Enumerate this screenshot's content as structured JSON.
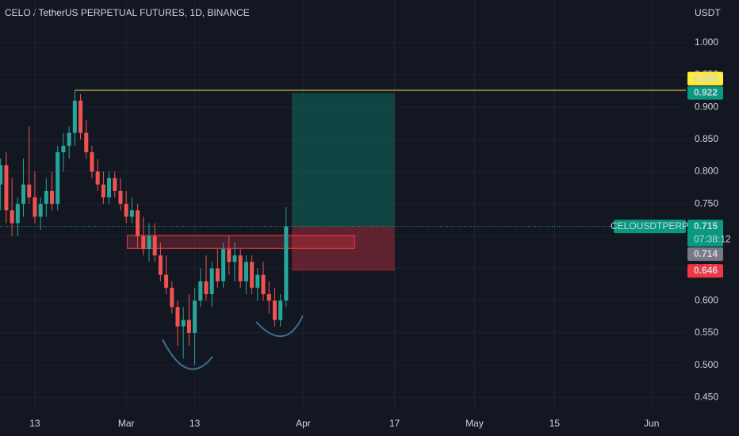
{
  "chart_data": {
    "type": "candlestick",
    "title": "CELO / TetherUS PERPETUAL FUTURES, 1D, BINANCE",
    "y_unit": "USDT",
    "x": [
      -6,
      -5,
      -4,
      -3,
      -2,
      -1,
      0,
      1,
      2,
      3,
      4,
      5,
      6,
      7,
      8,
      9,
      10,
      11,
      12,
      13,
      14,
      15,
      16,
      17,
      18,
      19,
      20,
      21,
      22,
      23,
      24,
      25,
      26,
      27,
      28,
      29,
      30,
      31,
      32,
      33,
      34,
      35,
      36,
      37,
      38,
      39,
      40,
      41,
      42,
      43,
      44
    ],
    "open": [
      0.78,
      0.81,
      0.74,
      0.72,
      0.75,
      0.78,
      0.76,
      0.73,
      0.75,
      0.77,
      0.75,
      0.83,
      0.84,
      0.86,
      0.91,
      0.86,
      0.83,
      0.8,
      0.78,
      0.76,
      0.79,
      0.77,
      0.75,
      0.73,
      0.74,
      0.7,
      0.68,
      0.7,
      0.67,
      0.64,
      0.62,
      0.59,
      0.56,
      0.57,
      0.55,
      0.6,
      0.63,
      0.61,
      0.65,
      0.63,
      0.68,
      0.66,
      0.67,
      0.63,
      0.66,
      0.62,
      0.64,
      0.61,
      0.6,
      0.57,
      0.6
    ],
    "high": [
      0.82,
      0.83,
      0.79,
      0.76,
      0.82,
      0.87,
      0.8,
      0.76,
      0.79,
      0.8,
      0.84,
      0.86,
      0.87,
      0.926,
      0.92,
      0.88,
      0.84,
      0.82,
      0.8,
      0.8,
      0.8,
      0.79,
      0.77,
      0.76,
      0.75,
      0.73,
      0.72,
      0.72,
      0.69,
      0.67,
      0.63,
      0.6,
      0.59,
      0.61,
      0.62,
      0.65,
      0.67,
      0.66,
      0.68,
      0.69,
      0.7,
      0.69,
      0.68,
      0.67,
      0.67,
      0.65,
      0.66,
      0.63,
      0.62,
      0.61,
      0.745
    ],
    "low": [
      0.74,
      0.72,
      0.7,
      0.7,
      0.73,
      0.75,
      0.72,
      0.71,
      0.73,
      0.74,
      0.74,
      0.8,
      0.82,
      0.84,
      0.85,
      0.82,
      0.79,
      0.77,
      0.75,
      0.75,
      0.76,
      0.74,
      0.72,
      0.72,
      0.68,
      0.67,
      0.66,
      0.66,
      0.63,
      0.61,
      0.58,
      0.53,
      0.51,
      0.53,
      0.5,
      0.59,
      0.6,
      0.59,
      0.62,
      0.62,
      0.64,
      0.63,
      0.62,
      0.61,
      0.61,
      0.6,
      0.6,
      0.58,
      0.56,
      0.56,
      0.59
    ],
    "close": [
      0.81,
      0.74,
      0.72,
      0.75,
      0.78,
      0.76,
      0.73,
      0.75,
      0.77,
      0.75,
      0.83,
      0.84,
      0.86,
      0.91,
      0.86,
      0.83,
      0.8,
      0.78,
      0.76,
      0.79,
      0.77,
      0.75,
      0.73,
      0.74,
      0.7,
      0.68,
      0.7,
      0.67,
      0.64,
      0.62,
      0.59,
      0.56,
      0.57,
      0.55,
      0.6,
      0.63,
      0.61,
      0.65,
      0.63,
      0.68,
      0.66,
      0.67,
      0.63,
      0.66,
      0.62,
      0.64,
      0.61,
      0.6,
      0.57,
      0.6,
      0.715
    ],
    "up_color": "#26a69a",
    "down_color": "#ef5350",
    "xlim": [
      -6.1,
      114
    ],
    "xticks": [
      {
        "value": 0,
        "label": "13"
      },
      {
        "value": 16,
        "label": "Mar"
      },
      {
        "value": 28,
        "label": "13"
      },
      {
        "value": 47,
        "label": "Apr"
      },
      {
        "value": 63,
        "label": "17"
      },
      {
        "value": 77,
        "label": "May"
      },
      {
        "value": 91,
        "label": "15"
      },
      {
        "value": 108,
        "label": "Jun"
      }
    ],
    "ylim": [
      0.427,
      1.066
    ],
    "yticks": [
      {
        "value": 0.45,
        "label": "0.450"
      },
      {
        "value": 0.5,
        "label": "0.500"
      },
      {
        "value": 0.55,
        "label": "0.550"
      },
      {
        "value": 0.6,
        "label": "0.600"
      },
      {
        "value": 0.65,
        "label": "0.650"
      },
      {
        "value": 0.7,
        "label": "0.700"
      },
      {
        "value": 0.75,
        "label": "0.750"
      },
      {
        "value": 0.8,
        "label": "0.800"
      },
      {
        "value": 0.85,
        "label": "0.850"
      },
      {
        "value": 0.9,
        "label": "0.900"
      },
      {
        "value": 0.95,
        "label": "0.950"
      },
      {
        "value": 1.0,
        "label": "1.000"
      }
    ],
    "horizontal_line": {
      "value": 0.926,
      "start": 7,
      "color": "#ffeb3b"
    },
    "zone": {
      "top": 0.701,
      "bottom": 0.681,
      "start": 16.2,
      "end": 56
    },
    "position": {
      "entry": 0.715,
      "target": 0.922,
      "stop": 0.646,
      "start": 45,
      "end": 63
    },
    "symbol": "CELOUSDTPERP",
    "countdown": "07:38:12",
    "last_price": 0.715,
    "price_tags": [
      {
        "value": 0.922,
        "color": "#089981"
      },
      {
        "value": 0.926,
        "color": "#ffeb3b"
      },
      {
        "value": 0.715,
        "color": "#089981"
      },
      {
        "value": 0.714,
        "color": "#787b86"
      },
      {
        "value": 0.646,
        "color": "#f23645"
      }
    ]
  }
}
